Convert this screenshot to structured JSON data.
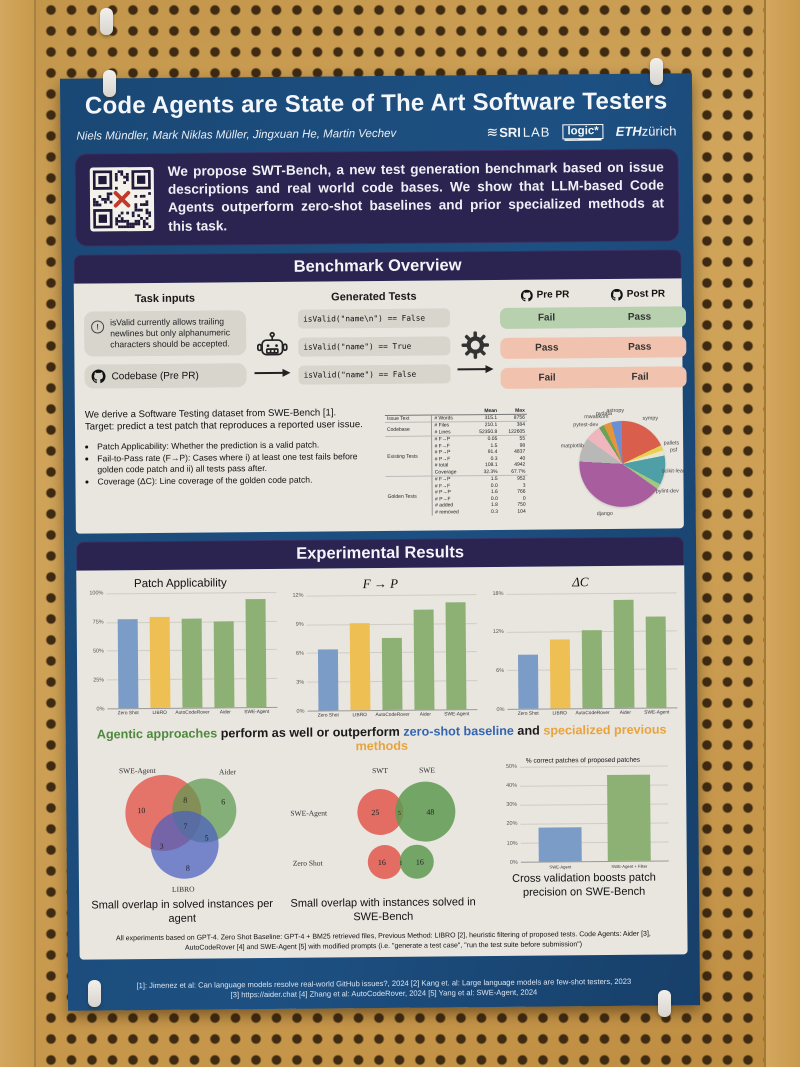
{
  "poster": {
    "title": "Code Agents are State of The Art Software Testers",
    "authors": "Niels Mündler, Mark Niklas Müller, Jingxuan He, Martin Vechev",
    "logos": {
      "sri": "SRI",
      "lab": "LAB",
      "logic": "logic*",
      "eth": "ETH",
      "zurich": "zürich"
    }
  },
  "abstract": {
    "text": "We propose SWT-Bench, a new test generation benchmark based on issue descriptions and real world code bases. We show that LLM-based Code Agents outperform zero-shot baselines and prior specialized methods at this task."
  },
  "benchmark": {
    "header": "Benchmark Overview",
    "task_inputs_label": "Task inputs",
    "generated_tests_label": "Generated Tests",
    "pre_pr_label": "Pre PR",
    "post_pr_label": "Post PR",
    "issue_text": "isValid currently allows trailing newlines but only alphanumeric characters should be accepted.",
    "codebase_label": "Codebase (Pre PR)",
    "tests": [
      "isValid(\"name\\n\") == False",
      "isValid(\"name\") == True",
      "isValid(\"name\") == False"
    ],
    "results": [
      {
        "pre": "Fail",
        "post": "Pass",
        "status": "good"
      },
      {
        "pre": "Pass",
        "post": "Pass",
        "status": "bad"
      },
      {
        "pre": "Fail",
        "post": "Fail",
        "status": "bad"
      }
    ],
    "status_colors": {
      "good": "#b7d0ae",
      "bad": "#f1c3ae"
    },
    "description_lines": [
      "We derive a Software Testing dataset from SWE-Bench [1].",
      "Target: predict a test patch that reproduces a reported user issue."
    ],
    "bullets": [
      "Patch Applicability: Whether the prediction is a valid patch.",
      "Fail-to-Pass rate (F→P): Cases where i) at least one test fails before golden code patch and ii) all tests pass after.",
      "Coverage (ΔC): Line coverage of the golden code patch."
    ],
    "stats_table": {
      "col_headers": [
        "Mean",
        "Max"
      ],
      "groups": [
        {
          "name": "Issue Text",
          "rows": [
            [
              "# Words",
              "315.1",
              "8756"
            ]
          ]
        },
        {
          "name": "Codebase",
          "rows": [
            [
              "# Files",
              "210.1",
              "384"
            ],
            [
              "# Lines",
              "52350.8",
              "122605"
            ]
          ]
        },
        {
          "name": "Existing Tests",
          "rows": [
            [
              "# F→P",
              "0.05",
              "55"
            ],
            [
              "# F→F",
              "1.5",
              "98"
            ],
            [
              "# P→P",
              "91.4",
              "4837"
            ],
            [
              "# P→F",
              "0.3",
              "40"
            ],
            [
              "# total",
              "108.1",
              "4942"
            ],
            [
              "Coverage",
              "32.3%",
              "67.7%"
            ]
          ]
        },
        {
          "name": "Golden Tests",
          "rows": [
            [
              "# F→P",
              "1.5",
              "952"
            ],
            [
              "# F→F",
              "0.0",
              "3"
            ],
            [
              "# P→P",
              "1.6",
              "766"
            ],
            [
              "# P→F",
              "0.0",
              "0"
            ],
            [
              "# added",
              "1.8",
              "750"
            ],
            [
              "# removed",
              "0.3",
              "104"
            ]
          ]
        }
      ]
    }
  },
  "results": {
    "header": "Experimental Results",
    "takeaway": [
      {
        "text": "Agentic approaches",
        "color": "#4e8a3e"
      },
      {
        "text": " perform as well or outperform ",
        "color": "#1a1a1a"
      },
      {
        "text": "zero-shot baseline",
        "color": "#3465b0"
      },
      {
        "text": " and ",
        "color": "#1a1a1a"
      },
      {
        "text": "specialized previous methods",
        "color": "#e8a33d"
      }
    ],
    "footnote": "All experiments based on GPT-4. Zero Shot Baseline: GPT-4 + BM25 retrieved files, Previous Method: LIBRO [2], heuristic filtering of proposed tests. Code Agents: Aider [3], AutoCodeRover [4] and SWE-Agent [5] with modified prompts (i.e. \"generate a test case\", \"run the test suite before submission\")"
  },
  "chart_data": [
    {
      "type": "bar",
      "title": "Patch Applicability",
      "categories": [
        "Zero Shot",
        "LIBRO",
        "AutoCodeRover",
        "Aider",
        "SWE-Agent"
      ],
      "values": [
        77,
        79,
        77,
        75,
        94
      ],
      "ylim": [
        0,
        100
      ],
      "yticks": [
        0,
        25,
        50,
        75,
        100
      ],
      "colors": [
        "#7b9cc7",
        "#eec054",
        "#8db174",
        "#8db174",
        "#8db174"
      ]
    },
    {
      "type": "bar",
      "title": "F → P",
      "categories": [
        "Zero Shot",
        "LIBRO",
        "AutoCodeRover",
        "Aider",
        "SWE-Agent"
      ],
      "values": [
        6.3,
        9.1,
        7.5,
        10.4,
        11.1
      ],
      "ylim": [
        0,
        12
      ],
      "yticks": [
        0,
        3,
        6,
        9,
        12
      ],
      "colors": [
        "#7b9cc7",
        "#eec054",
        "#8db174",
        "#8db174",
        "#8db174"
      ]
    },
    {
      "type": "bar",
      "title": "ΔC",
      "categories": [
        "Zero Shot",
        "LIBRO",
        "AutoCodeRover",
        "Aider",
        "SWE-Agent"
      ],
      "values": [
        8.5,
        10.7,
        12.2,
        16.8,
        14.2
      ],
      "ylim": [
        0,
        18
      ],
      "yticks": [
        0,
        6,
        12,
        18
      ],
      "colors": [
        "#7b9cc7",
        "#eec054",
        "#8db174",
        "#8db174",
        "#8db174"
      ]
    },
    {
      "type": "bar",
      "title": "% correct patches of proposed patches",
      "categories": [
        "SWE-Agent",
        "SWE-Agent + Filter"
      ],
      "values": [
        18,
        45
      ],
      "ylim": [
        0,
        50
      ],
      "yticks": [
        0,
        10,
        20,
        30,
        40,
        50
      ],
      "colors": [
        "#7b9cc7",
        "#8db174"
      ]
    },
    {
      "type": "pie",
      "labels": [
        "sympy",
        "pallets",
        "psf",
        "scikit-learn",
        "pylint-dev",
        "django",
        "matplotlib",
        "pytest-dev",
        "mwaskom",
        "pydata",
        "astropy"
      ],
      "values": [
        18,
        2,
        2,
        11,
        2,
        41,
        9,
        6,
        2,
        3,
        4
      ],
      "colors": [
        "#d95f4c",
        "#e6d24f",
        "#e8e3c9",
        "#4f9fa6",
        "#9fc97e",
        "#a85d9e",
        "#b8b8b6",
        "#f0b6bd",
        "#69a356",
        "#e6953f",
        "#6b8fd4"
      ]
    }
  ],
  "venn1": {
    "colors": {
      "a": "#e2574c",
      "b": "#5e9a50",
      "c": "#4a5fc0"
    },
    "labels": {
      "a": "SWE-Agent",
      "b": "Aider",
      "c": "LIBRO"
    },
    "regions": {
      "a_only": "10",
      "ab": "8",
      "b_only": "6",
      "abc": "7",
      "ac": "3",
      "bc": "5",
      "c_only": "8"
    },
    "caption": "Small overlap in solved instances per agent"
  },
  "venn2": {
    "col1": "SWT",
    "col2": "SWE",
    "rows": [
      {
        "label": "SWE-Agent",
        "left": "25",
        "mid": "5",
        "right": "48"
      },
      {
        "label": "Zero Shot",
        "left": "16",
        "mid": "1",
        "right": "16"
      }
    ],
    "caption": "Small overlap with instances solved in SWE-Bench"
  },
  "caption3": "Cross validation boosts patch precision on SWE-Bench",
  "references": {
    "line1": "[1]: Jimenez et al: Can language models resolve real-world GitHub issues?, 2024 [2] Kang et. al: Large language models are few-shot testers, 2023",
    "line2": "[3] https://aider.chat [4] Zhang et al: AutoCodeRover, 2024 [5] Yang et al: SWE-Agent, 2024"
  }
}
